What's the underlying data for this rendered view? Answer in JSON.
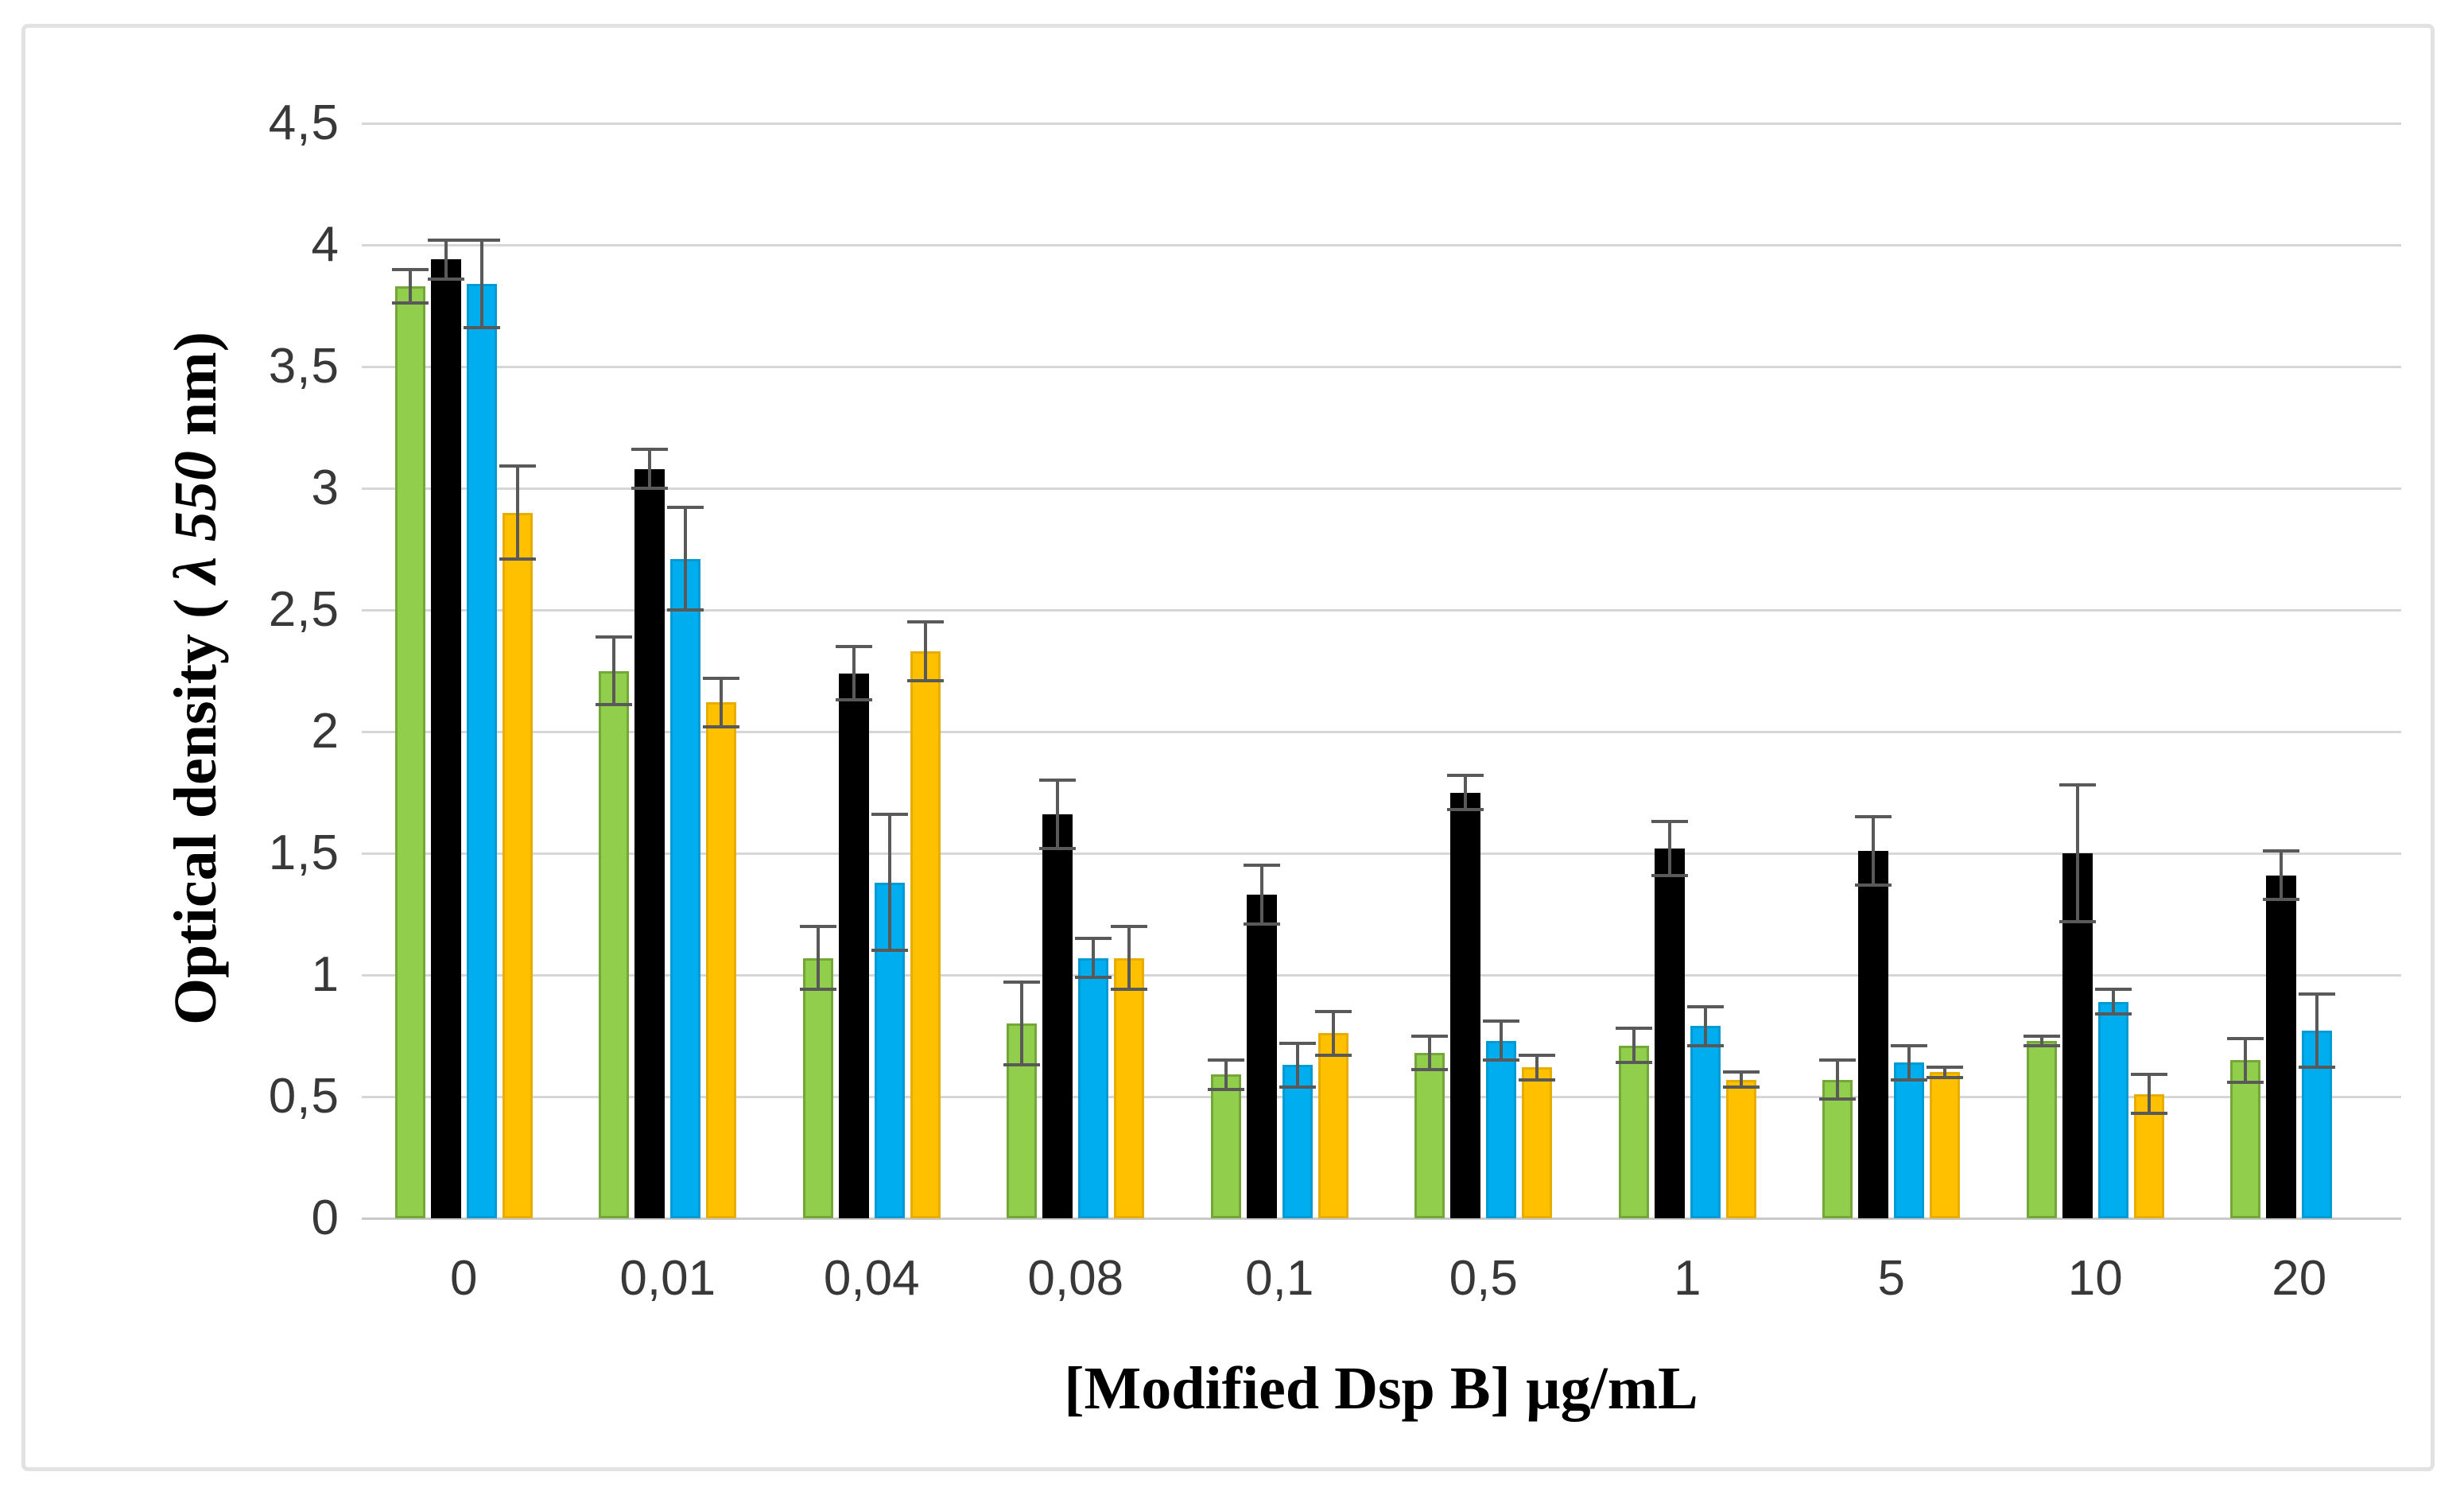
{
  "chart_data": {
    "type": "bar",
    "title": "",
    "xlabel": "[Modified Dsp B] µg/mL",
    "ylabel": "Optical density ( λ 550 nm)",
    "ylabel_parts": [
      "Optical density (",
      " λ 550",
      " nm)"
    ],
    "ylim": [
      0,
      4.5
    ],
    "y_tick_step": 0.5,
    "y_ticks": [
      "0",
      "0,5",
      "1",
      "1,5",
      "2",
      "2,5",
      "3",
      "3,5",
      "4",
      "4,5"
    ],
    "grid": true,
    "legend_position": "none",
    "decimal_separator": ",",
    "categories": [
      "0",
      "0,01",
      "0,04",
      "0,08",
      "0,1",
      "0,5",
      "1",
      "5",
      "10",
      "20"
    ],
    "series": [
      {
        "name": "series-green",
        "color": "#90CE4B",
        "border_color": "#73A839",
        "values": [
          3.83,
          2.25,
          1.07,
          0.8,
          0.59,
          0.68,
          0.71,
          0.57,
          0.73,
          0.65
        ],
        "errors": [
          0.07,
          0.14,
          0.13,
          0.17,
          0.06,
          0.07,
          0.07,
          0.08,
          0.02,
          0.09
        ]
      },
      {
        "name": "series-black",
        "color": "#000000",
        "border_color": "#000000",
        "values": [
          3.94,
          3.08,
          2.24,
          1.66,
          1.33,
          1.75,
          1.52,
          1.51,
          1.5,
          1.41
        ],
        "errors": [
          0.08,
          0.08,
          0.11,
          0.14,
          0.12,
          0.07,
          0.11,
          0.14,
          0.28,
          0.1
        ]
      },
      {
        "name": "series-blue",
        "color": "#00AEEF",
        "border_color": "#009BD5",
        "values": [
          3.84,
          2.71,
          1.38,
          1.07,
          0.63,
          0.73,
          0.79,
          0.64,
          0.89,
          0.77
        ],
        "errors": [
          0.18,
          0.21,
          0.28,
          0.08,
          0.09,
          0.08,
          0.08,
          0.07,
          0.05,
          0.15
        ]
      },
      {
        "name": "series-yellow",
        "color": "#FFC000",
        "border_color": "#E7AD00",
        "values": [
          2.9,
          2.12,
          2.33,
          1.07,
          0.76,
          0.62,
          0.57,
          0.6,
          0.51,
          null
        ],
        "errors": [
          0.19,
          0.1,
          0.12,
          0.13,
          0.09,
          0.05,
          0.03,
          0.02,
          0.08,
          null
        ]
      }
    ],
    "error_bar_color": "#595959",
    "gridline_color": "#d6d6d6"
  }
}
